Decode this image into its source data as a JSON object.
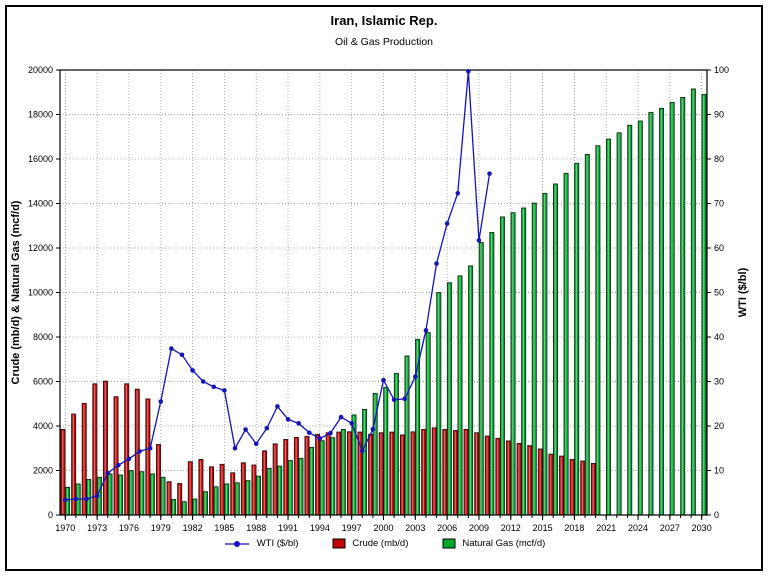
{
  "chart_data": {
    "type": "combo",
    "title": "Iran, Islamic Rep.",
    "subtitle": "Oil & Gas Production",
    "x_range": [
      1970,
      2030
    ],
    "x_tick_labels": [
      1970,
      1973,
      1976,
      1979,
      1982,
      1985,
      1988,
      1991,
      1994,
      1997,
      2000,
      2003,
      2006,
      2009,
      2012,
      2015,
      2018,
      2021,
      2024,
      2027,
      2030
    ],
    "left_axis": {
      "label": "Crude (mb/d) & Natural Gas (mcf/d)",
      "range": [
        0,
        20000
      ],
      "step": 2000
    },
    "right_axis": {
      "label": "WTI ($/bl)",
      "range": [
        0,
        100
      ],
      "step": 10
    },
    "grid": true,
    "legend_position": "bottom",
    "series": [
      {
        "name": "WTI ($/bl)",
        "type": "line",
        "axis": "right",
        "color": "#1414b8",
        "x_start": 1970,
        "values": [
          3.4,
          3.6,
          3.6,
          4.3,
          9.4,
          11.2,
          12.6,
          14.3,
          15.0,
          25.5,
          37.4,
          36.0,
          32.5,
          30.0,
          28.8,
          28.0,
          15.0,
          19.2,
          16.0,
          19.5,
          24.4,
          21.5,
          20.6,
          18.5,
          17.2,
          18.4,
          22.0,
          20.6,
          14.4,
          19.3,
          30.3,
          25.9,
          26.1,
          31.1,
          41.5,
          56.5,
          65.5,
          72.3,
          99.7,
          61.7,
          76.7
        ]
      },
      {
        "name": "Crude (mb/d)",
        "type": "bar",
        "axis": "left",
        "color": "#c00505",
        "x_start": 1970,
        "values": [
          3850,
          4540,
          5020,
          5900,
          6020,
          5320,
          5900,
          5660,
          5220,
          3170,
          1500,
          1420,
          2400,
          2500,
          2170,
          2280,
          1900,
          2350,
          2250,
          2890,
          3200,
          3400,
          3490,
          3540,
          3630,
          3700,
          3730,
          3745,
          3730,
          3630,
          3700,
          3730,
          3600,
          3740,
          3850,
          3920,
          3850,
          3800,
          3850,
          3700,
          3550,
          3450,
          3330,
          3220,
          3120,
          2970,
          2740,
          2650,
          2500,
          2430,
          2320
        ]
      },
      {
        "name": "Natural Gas (mcf/d)",
        "type": "bar",
        "axis": "left",
        "color": "#00a62b",
        "x_start": 1970,
        "values": [
          1250,
          1400,
          1600,
          1700,
          1850,
          1800,
          2000,
          1950,
          1850,
          1700,
          700,
          600,
          720,
          1050,
          1270,
          1400,
          1450,
          1550,
          1750,
          2100,
          2200,
          2450,
          2550,
          3040,
          3340,
          3480,
          3850,
          4500,
          4750,
          5470,
          5740,
          6370,
          7150,
          7900,
          8200,
          10000,
          10440,
          10750,
          11200,
          12250,
          12700,
          13400,
          13590,
          13800,
          14020,
          14460,
          14880,
          15360,
          15810,
          16210,
          16600,
          16900,
          17180,
          17520,
          17710,
          18100,
          18280,
          18550,
          18770,
          19150,
          18900
        ]
      }
    ]
  }
}
